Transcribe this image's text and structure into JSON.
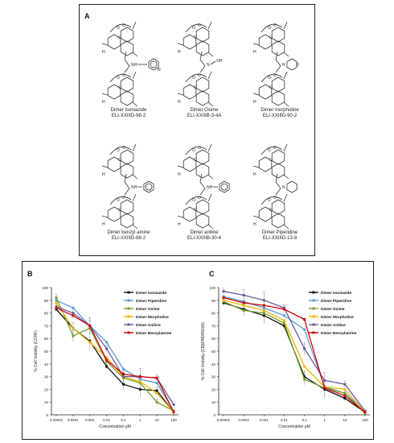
{
  "panel_a": {
    "label": "A",
    "molecules": [
      {
        "name": "Dimer Isoniazide",
        "code": "ELI-XXIIID-98-2",
        "group": "isoniazide"
      },
      {
        "name": "Dimer Oxime",
        "code": "ELI-XXIIIB-3-4A",
        "group": "oxime"
      },
      {
        "name": "Dimer morpholine",
        "code": "ELI-XXIIID-90-2",
        "group": "morpholine"
      },
      {
        "name": "Dimer benzyl amine",
        "code": "ELI-XXIIID-88-2",
        "group": "benzylamine"
      },
      {
        "name": "Dimer aniline",
        "code": "ELI-XXIIIB-30-4",
        "group": "aniline"
      },
      {
        "name": "Dimer Piperidine",
        "code": "ELI-XXIIID-13-8",
        "group": "piperidine"
      }
    ],
    "atom_labels": {
      "h": "H",
      "o": "O",
      "n": "N",
      "nh": "NH",
      "oh": "OH"
    }
  },
  "colors": {
    "Dimer Isoniazide": "#111111",
    "Dimer Piperidine": "#5b9bd5",
    "Dimer Oxime": "#70a030",
    "Dimer Morpholine": "#f0b400",
    "Dimer Aniline": "#7058a0",
    "Dimer Benzylamine": "#d00000"
  },
  "chart_data": [
    {
      "panel": "B",
      "type": "line",
      "x": [
        "0.00001",
        "0.0001",
        "0.001",
        "0.01",
        "0.1",
        "1",
        "10",
        "100"
      ],
      "xlabel": "Concentration µM",
      "ylabel": "% Cell Viability (CCRF)",
      "ylim": [
        0,
        100
      ],
      "yticks": [
        0,
        10,
        20,
        30,
        40,
        50,
        60,
        70,
        80,
        90,
        100
      ],
      "series": [
        {
          "name": "Dimer Isoniazide",
          "values": [
            83,
            68,
            58,
            38,
            24,
            20,
            19,
            2
          ]
        },
        {
          "name": "Dimer Piperidine",
          "values": [
            90,
            84,
            70,
            57,
            36,
            28,
            25,
            3
          ]
        },
        {
          "name": "Dimer Oxime",
          "values": [
            92,
            62,
            68,
            42,
            29,
            25,
            10,
            3
          ]
        },
        {
          "name": "Dimer Morpholine",
          "values": [
            88,
            68,
            57,
            45,
            30,
            26,
            17,
            2
          ]
        },
        {
          "name": "Dimer Aniline",
          "values": [
            85,
            80,
            70,
            52,
            30,
            30,
            29,
            8
          ]
        },
        {
          "name": "Dimer Benzylamine",
          "values": [
            84,
            78,
            70,
            43,
            32,
            30,
            29,
            2
          ]
        }
      ]
    },
    {
      "panel": "C",
      "type": "line",
      "x": [
        "0.00001",
        "0.0001",
        "0.001",
        "0.01",
        "0.1",
        "1",
        "10",
        "100"
      ],
      "xlabel": "Concentration µM",
      "ylabel": "% Cell Viability (CEM/ADR5000)",
      "ylim": [
        0,
        100
      ],
      "yticks": [
        0,
        10,
        20,
        30,
        40,
        50,
        60,
        70,
        80,
        90,
        100
      ],
      "series": [
        {
          "name": "Dimer Isoniazide",
          "values": [
            88,
            83,
            78,
            70,
            30,
            20,
            13,
            2
          ]
        },
        {
          "name": "Dimer Piperidine",
          "values": [
            93,
            89,
            84,
            78,
            67,
            22,
            17,
            3
          ]
        },
        {
          "name": "Dimer Oxime",
          "values": [
            89,
            82,
            80,
            72,
            28,
            21,
            17,
            1
          ]
        },
        {
          "name": "Dimer Morpholine",
          "values": [
            90,
            86,
            82,
            74,
            38,
            22,
            20,
            2
          ]
        },
        {
          "name": "Dimer Aniline",
          "values": [
            97,
            94,
            90,
            84,
            52,
            27,
            24,
            3
          ]
        },
        {
          "name": "Dimer Benzylamine",
          "values": [
            92,
            88,
            86,
            83,
            75,
            21,
            15,
            2
          ]
        }
      ]
    }
  ]
}
